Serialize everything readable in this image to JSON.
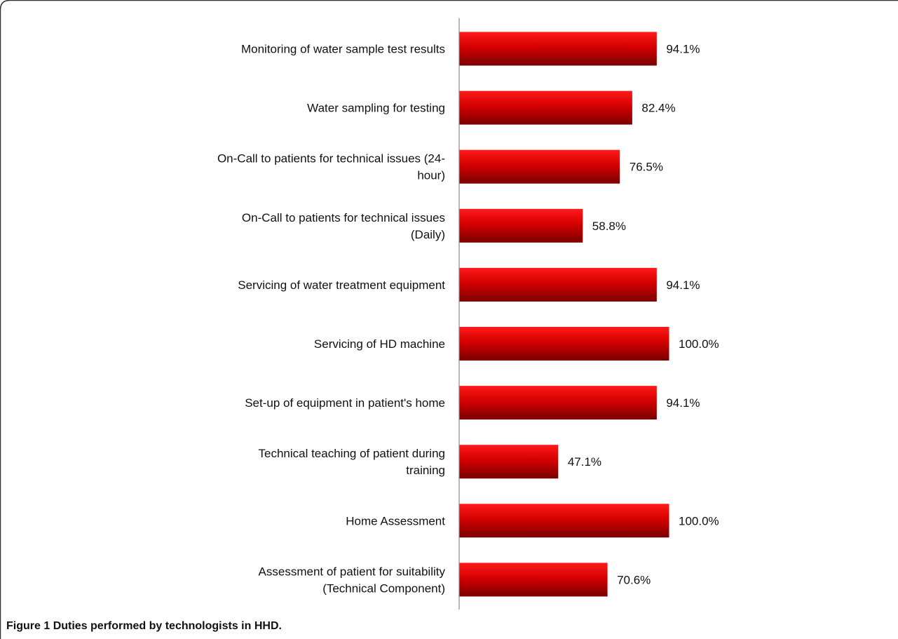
{
  "figure": {
    "label": "Figure 1",
    "caption": "Duties performed by technologists in HHD."
  },
  "colors": {
    "bar_light": "#ff1a1a",
    "bar_mid": "#d40000",
    "bar_dark": "#7a0000",
    "axis": "#888888",
    "frame": "#333333"
  },
  "chart_data": {
    "type": "bar",
    "orientation": "horizontal",
    "categories": [
      [
        "Monitoring of water sample test results"
      ],
      [
        "Water sampling for testing"
      ],
      [
        "On-Call to patients for technical issues (24-",
        "hour)"
      ],
      [
        "On-Call to patients for technical issues",
        "(Daily)"
      ],
      [
        "Servicing of water treatment equipment"
      ],
      [
        "Servicing of HD machine"
      ],
      [
        "Set-up of equipment in patient's home"
      ],
      [
        "Technical teaching of patient during",
        "training"
      ],
      [
        "Home Assessment"
      ],
      [
        "Assessment of patient for suitability",
        "(Technical Component)"
      ]
    ],
    "values": [
      94.1,
      82.4,
      76.5,
      58.8,
      94.1,
      100.0,
      94.1,
      47.1,
      100.0,
      70.6
    ],
    "data_labels": [
      "94.1%",
      "82.4%",
      "76.5%",
      "58.8%",
      "94.1%",
      "100.0%",
      "94.1%",
      "47.1%",
      "100.0%",
      "70.6%"
    ],
    "xlim": [
      0,
      100
    ],
    "grid": false,
    "legend": "none"
  }
}
